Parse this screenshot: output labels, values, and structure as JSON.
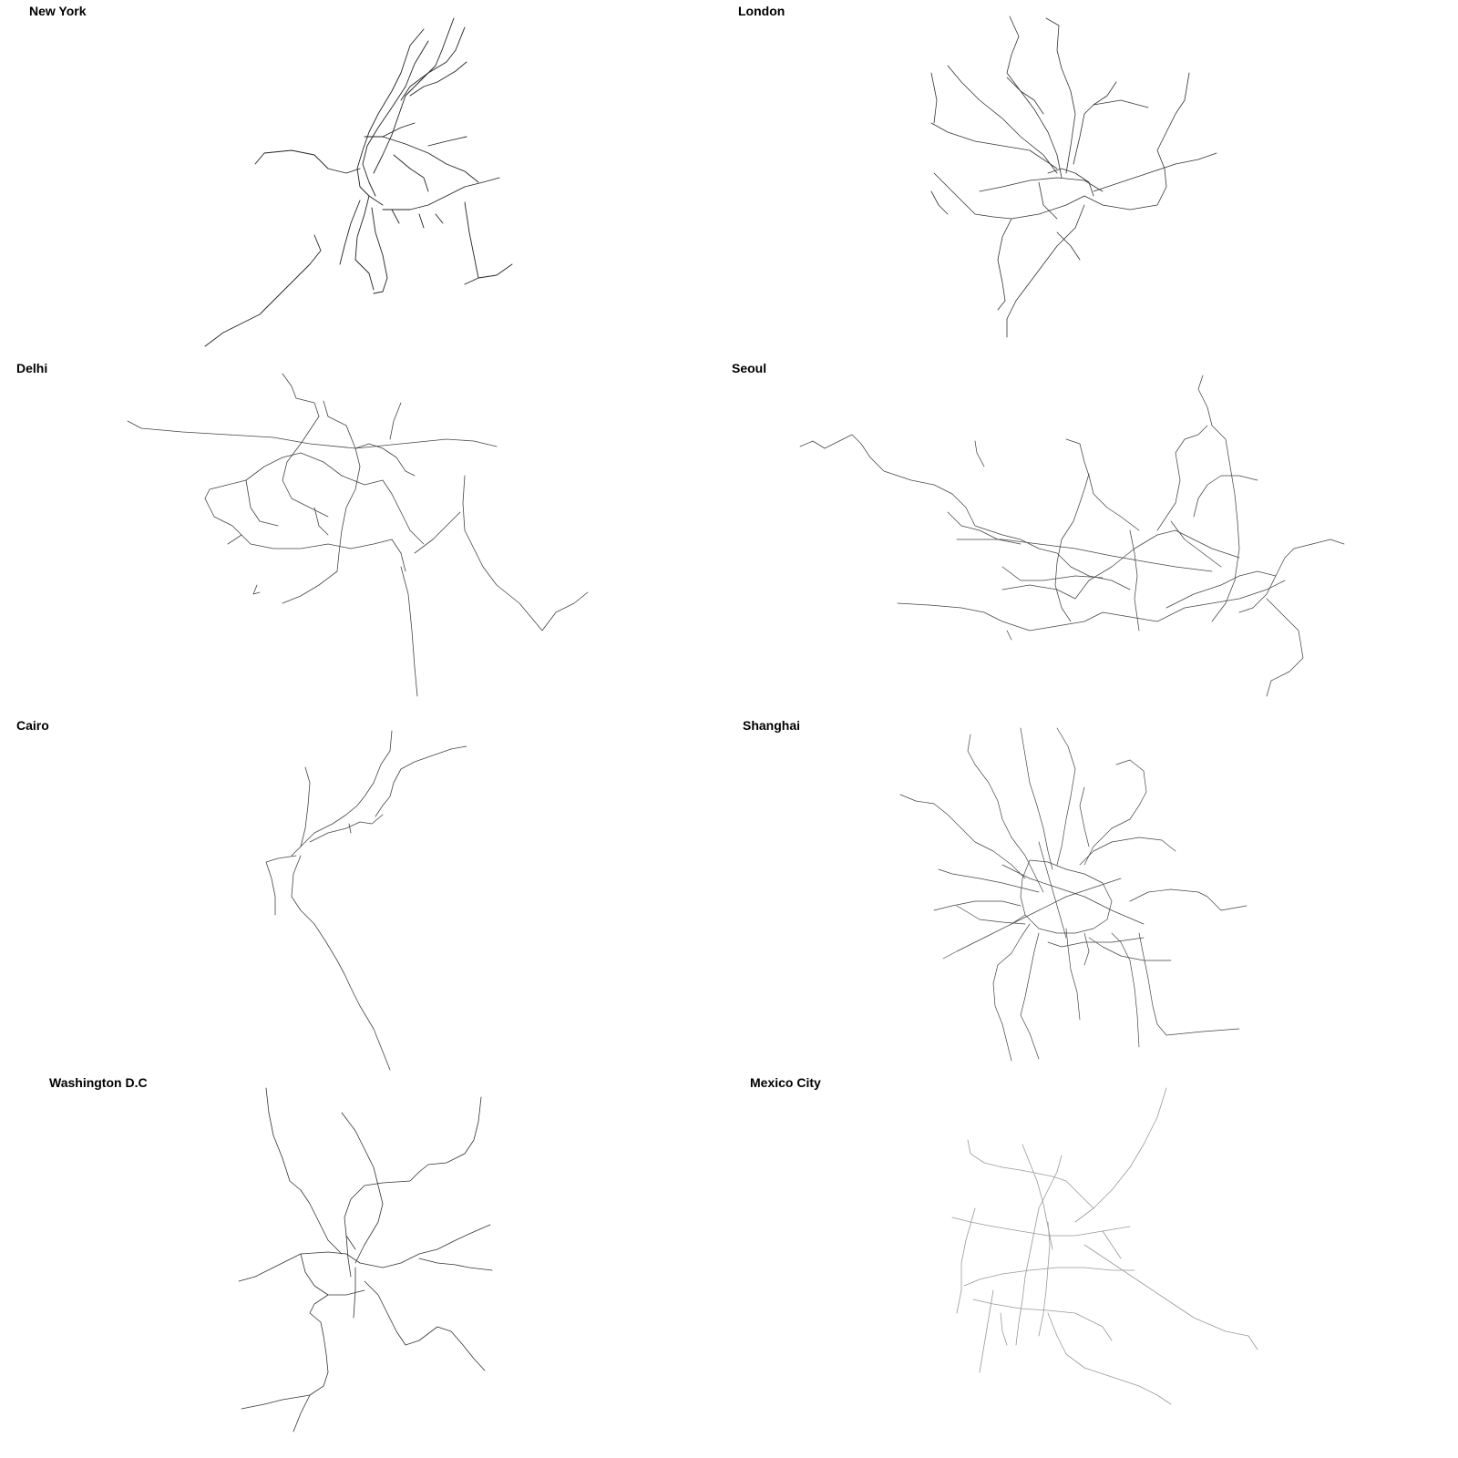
{
  "maps": [
    {
      "title": "New York",
      "line_color": "#222222"
    },
    {
      "title": "London",
      "line_color": "#333333"
    },
    {
      "title": "Delhi",
      "line_color": "#444444"
    },
    {
      "title": "Seoul",
      "line_color": "#444444"
    },
    {
      "title": "Cairo",
      "line_color": "#444444"
    },
    {
      "title": "Shanghai",
      "line_color": "#444444"
    },
    {
      "title": "Washington D.C",
      "line_color": "#333333"
    },
    {
      "title": "Mexico City",
      "line_color": "#999999"
    }
  ]
}
